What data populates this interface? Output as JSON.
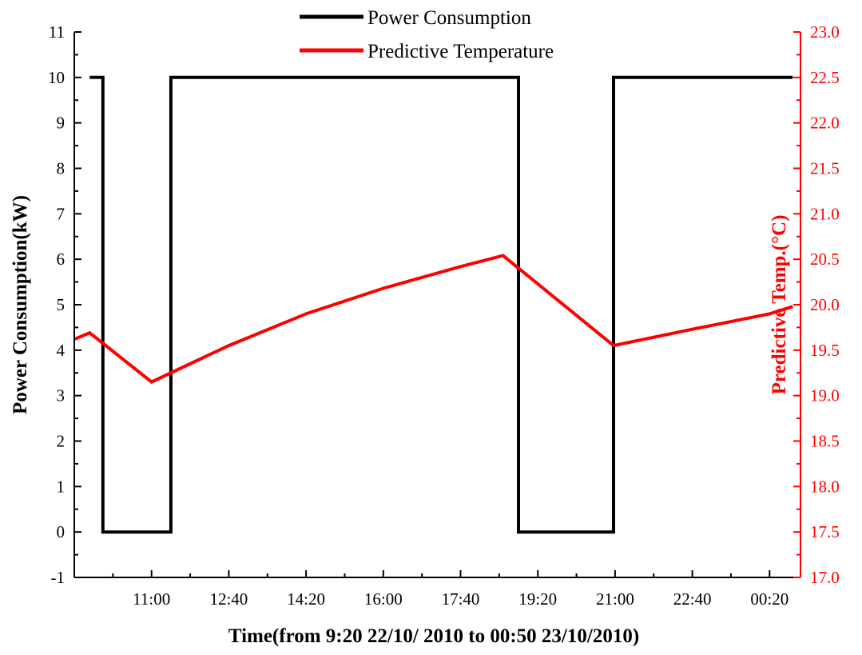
{
  "chart_data": {
    "type": "line",
    "xlabel": "Time(from 9:20  22/10/ 2010 to 00:50 23/10/2010)",
    "ylabel_left": "Power Consumption(kW)",
    "ylabel_right": "Predictive Temp.(°C)",
    "x_range": [
      "09:20",
      "01:00"
    ],
    "x_ticks": [
      "11:00",
      "12:40",
      "14:20",
      "16:00",
      "17:40",
      "19:20",
      "21:00",
      "22:40",
      "00:20"
    ],
    "ylim_left": [
      -1,
      11
    ],
    "yticks_left": [
      "-1",
      "0",
      "1",
      "2",
      "3",
      "4",
      "5",
      "6",
      "7",
      "8",
      "9",
      "10",
      "11"
    ],
    "ylim_right": [
      17.0,
      23.0
    ],
    "yticks_right": [
      "17.0",
      "17.5",
      "18.0",
      "18.5",
      "19.0",
      "19.5",
      "20.0",
      "20.5",
      "21.0",
      "21.5",
      "22.0",
      "22.5",
      "23.0"
    ],
    "legend_position": "top",
    "grid": false,
    "series": [
      {
        "name": "Power Consumption",
        "axis": "left",
        "color": "#000000",
        "step": true,
        "points": [
          {
            "x": "09:40",
            "y": 10
          },
          {
            "x": "09:57",
            "y": 10
          },
          {
            "x": "09:57",
            "y": 0
          },
          {
            "x": "11:25",
            "y": 0
          },
          {
            "x": "11:25",
            "y": 10
          },
          {
            "x": "18:55",
            "y": 10
          },
          {
            "x": "18:55",
            "y": 0
          },
          {
            "x": "20:58",
            "y": 0
          },
          {
            "x": "20:58",
            "y": 10
          },
          {
            "x": "00:50",
            "y": 10
          }
        ]
      },
      {
        "name": "Predictive Temperature",
        "axis": "right",
        "color": "#ff0000",
        "step": false,
        "points": [
          {
            "x": "09:20",
            "y": 19.62
          },
          {
            "x": "09:40",
            "y": 19.69
          },
          {
            "x": "11:00",
            "y": 19.15
          },
          {
            "x": "12:40",
            "y": 19.55
          },
          {
            "x": "14:20",
            "y": 19.9
          },
          {
            "x": "16:00",
            "y": 20.18
          },
          {
            "x": "17:40",
            "y": 20.42
          },
          {
            "x": "18:35",
            "y": 20.54
          },
          {
            "x": "20:58",
            "y": 19.55
          },
          {
            "x": "22:40",
            "y": 19.73
          },
          {
            "x": "00:20",
            "y": 19.9
          },
          {
            "x": "00:50",
            "y": 19.98
          }
        ]
      }
    ]
  }
}
